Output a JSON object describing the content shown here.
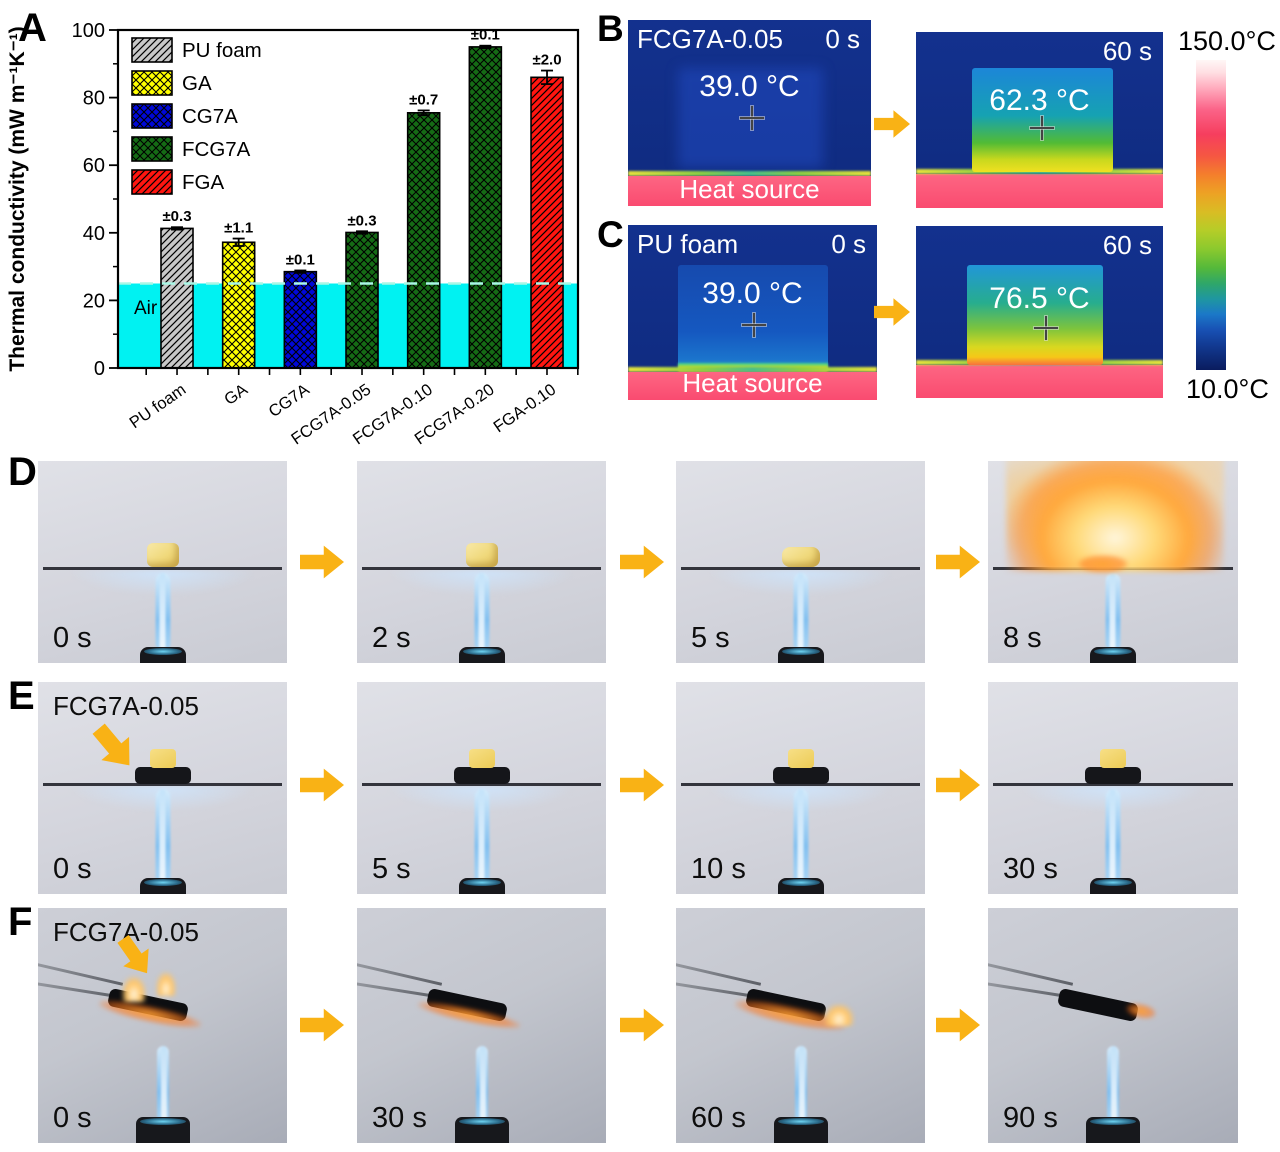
{
  "colors": {
    "arrow_orange": "#F9B215",
    "air_cyan": "#00F2F2",
    "thermal_navy": "#12308C",
    "heat_source_pink": "#FB5576"
  },
  "chart_data": {
    "type": "bar",
    "title": "",
    "ylabel": "Thermal conductivity (mW m⁻¹K⁻¹)",
    "ylim": [
      0,
      100
    ],
    "yticks": [
      0,
      20,
      40,
      60,
      80,
      100
    ],
    "categories": [
      "PU foam",
      "GA",
      "CG7A",
      "FCG7A-0.05",
      "FCG7A-0.10",
      "FCG7A-0.20",
      "FGA-0.10"
    ],
    "values": [
      41.3,
      37.2,
      28.5,
      40.1,
      75.5,
      95.0,
      86.0
    ],
    "errors": [
      0.3,
      1.1,
      0.1,
      0.3,
      0.7,
      0.1,
      2.0
    ],
    "error_labels": [
      "±0.3",
      "±1.1",
      "±0.1",
      "±0.3",
      "±0.7",
      "±0.1",
      "±2.0"
    ],
    "bar_colors": [
      "#c8c8c8",
      "#ffff00",
      "#0008d8",
      "#156b15",
      "#156b15",
      "#156b15",
      "#ff1510"
    ],
    "hatches": [
      "diag",
      "cross",
      "cross",
      "cross",
      "cross",
      "cross",
      "diag"
    ],
    "legend_position": "upper-left",
    "grid": false,
    "legend": [
      {
        "label": "PU foam",
        "color": "#c8c8c8",
        "hatch": "diag"
      },
      {
        "label": "GA",
        "color": "#ffff00",
        "hatch": "cross"
      },
      {
        "label": "CG7A",
        "color": "#0008d8",
        "hatch": "cross"
      },
      {
        "label": "FCG7A",
        "color": "#156b15",
        "hatch": "cross"
      },
      {
        "label": "FGA",
        "color": "#ff1510",
        "hatch": "diag"
      }
    ],
    "air_band": {
      "label": "Air",
      "value": 25,
      "color": "#00F2F2"
    }
  },
  "panelA": {
    "label": "A"
  },
  "panelB": {
    "label": "B",
    "frames": [
      {
        "name": "FCG7A-0.05",
        "time": "0 s",
        "temp": "39.0 °C",
        "heat_source": "Heat source"
      },
      {
        "time": "60 s",
        "temp": "62.3 °C"
      }
    ]
  },
  "panelC": {
    "label": "C",
    "frames": [
      {
        "name": "PU foam",
        "time": "0 s",
        "temp": "39.0 °C",
        "heat_source": "Heat source"
      },
      {
        "time": "60 s",
        "temp": "76.5 °C"
      }
    ]
  },
  "colorbar": {
    "top": "150.0°C",
    "bottom": "10.0°C"
  },
  "panelD": {
    "label": "D",
    "times": [
      "0 s",
      "2 s",
      "5 s",
      "8 s"
    ]
  },
  "panelE": {
    "label": "E",
    "sample": "FCG7A-0.05",
    "times": [
      "0 s",
      "5 s",
      "10 s",
      "30 s"
    ]
  },
  "panelF": {
    "label": "F",
    "sample": "FCG7A-0.05",
    "times": [
      "0 s",
      "30 s",
      "60 s",
      "90 s"
    ]
  }
}
